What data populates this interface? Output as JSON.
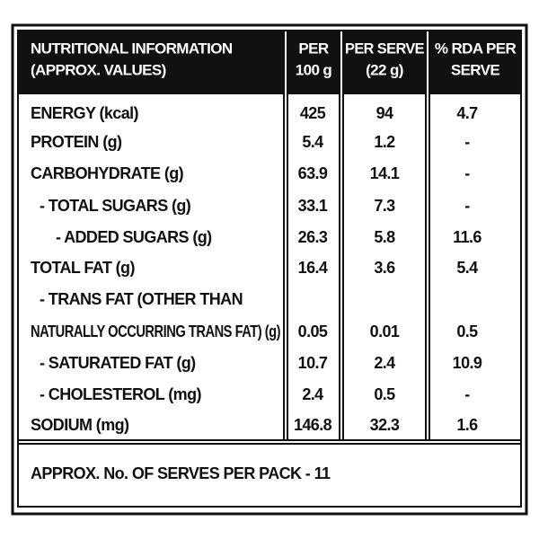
{
  "header": {
    "columns": [
      [
        "NUTRITIONAL INFORMATION",
        "(APPROX. VALUES)"
      ],
      [
        "PER",
        "100 g"
      ],
      [
        "PER SERVE",
        "(22 g)"
      ],
      [
        "% RDA PER",
        "SERVE"
      ]
    ]
  },
  "rows": [
    {
      "label": "ENERGY (kcal)",
      "values": [
        "425",
        "94",
        "4.7"
      ]
    },
    {
      "label": "PROTEIN (g)",
      "values": [
        "5.4",
        "1.2",
        "-"
      ]
    },
    {
      "label": "CARBOHYDRATE (g)",
      "values": [
        "63.9",
        "14.1",
        "-"
      ]
    },
    {
      "label": "- TOTAL SUGARS (g)",
      "values": [
        "33.1",
        "7.3",
        "-"
      ]
    },
    {
      "label": "- ADDED SUGARS (g)",
      "values": [
        "26.3",
        "5.8",
        "11.6"
      ]
    },
    {
      "label": "TOTAL FAT (g)",
      "values": [
        "16.4",
        "3.6",
        "5.4"
      ]
    },
    {
      "label": "- TRANS FAT (OTHER THAN"
    },
    {
      "label": "NATURALLY OCCURRING TRANS FAT) (g)",
      "values": [
        "0.05",
        "0.01",
        "0.5"
      ]
    },
    {
      "label": "- SATURATED FAT (g)",
      "values": [
        "10.7",
        "2.4",
        "10.9"
      ]
    },
    {
      "label": "- CHOLESTEROL (mg)",
      "values": [
        "2.4",
        "0.5",
        "-"
      ]
    },
    {
      "label": "SODIUM (mg)",
      "values": [
        "146.8",
        "32.3",
        "1.6"
      ]
    }
  ],
  "footer": "APPROX. No. OF SERVES PER PACK - 11"
}
